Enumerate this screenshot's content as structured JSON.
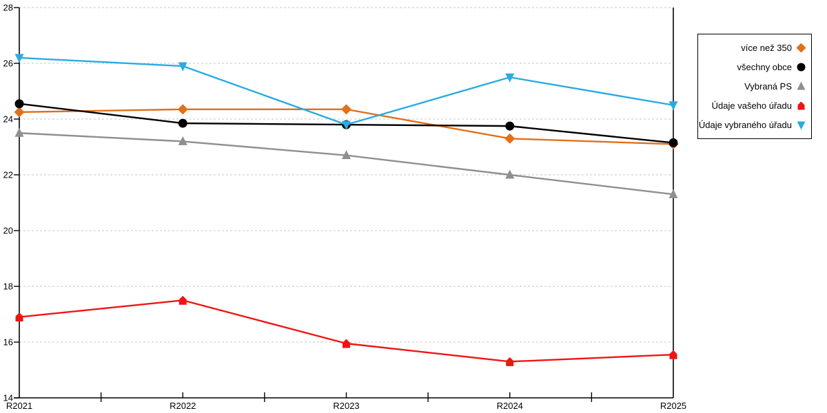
{
  "chart_data": {
    "type": "line",
    "title": "",
    "xlabel": "",
    "ylabel": "",
    "categories": [
      "R2021",
      "R2022",
      "R2023",
      "R2024",
      "R2025"
    ],
    "series": [
      {
        "name": "více než 350",
        "color": "#E0701A",
        "marker": "diamond",
        "values": [
          24.25,
          24.35,
          24.35,
          23.3,
          23.1
        ]
      },
      {
        "name": "všechny obce",
        "color": "#000000",
        "marker": "circle",
        "values": [
          24.55,
          23.85,
          23.8,
          23.75,
          23.15
        ]
      },
      {
        "name": "Vybraná PS",
        "color": "#8F8F8F",
        "marker": "triangle-up",
        "values": [
          23.5,
          23.2,
          22.7,
          22.0,
          21.3
        ]
      },
      {
        "name": "Údaje vašeho úřadu",
        "color": "#F01414",
        "marker": "house",
        "values": [
          16.9,
          17.5,
          15.95,
          15.3,
          15.55
        ]
      },
      {
        "name": "Údaje vybraného úřadu",
        "color": "#29ABE2",
        "marker": "triangle-down",
        "values": [
          26.2,
          25.9,
          23.8,
          25.5,
          24.5
        ]
      }
    ],
    "ylim": [
      14,
      28
    ],
    "yticks": [
      14,
      16,
      18,
      20,
      22,
      24,
      26,
      28
    ],
    "grid": "horizontal-dashed",
    "legend_position": "right"
  },
  "colors": {
    "background": "#FFFFFF",
    "axis": "#000000",
    "gridline": "#C6C6C6",
    "text": "#000000"
  }
}
